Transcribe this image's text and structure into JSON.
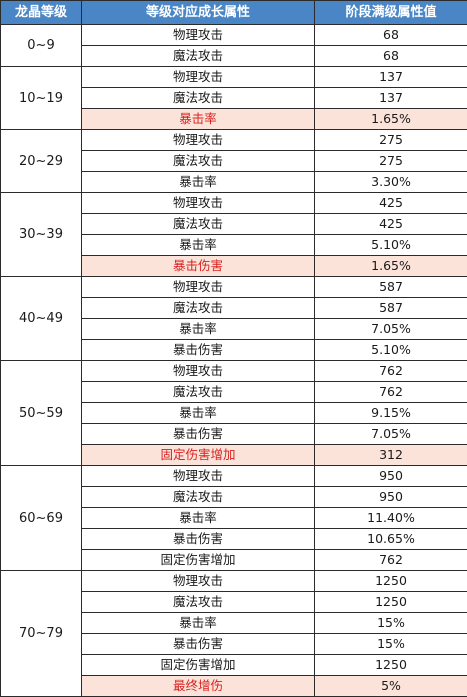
{
  "header": {
    "level": "龙晶等级",
    "attr": "等级对应成长属性",
    "value": "阶段满级属性值"
  },
  "highlight_color": "#fbe3da",
  "groups": [
    {
      "level": "0~9",
      "rows": [
        {
          "attr": "物理攻击",
          "value": "68",
          "new": false
        },
        {
          "attr": "魔法攻击",
          "value": "68",
          "new": false
        }
      ]
    },
    {
      "level": "10~19",
      "rows": [
        {
          "attr": "物理攻击",
          "value": "137",
          "new": false
        },
        {
          "attr": "魔法攻击",
          "value": "137",
          "new": false
        },
        {
          "attr": "暴击率",
          "value": "1.65%",
          "new": true
        }
      ]
    },
    {
      "level": "20~29",
      "rows": [
        {
          "attr": "物理攻击",
          "value": "275",
          "new": false
        },
        {
          "attr": "魔法攻击",
          "value": "275",
          "new": false
        },
        {
          "attr": "暴击率",
          "value": "3.30%",
          "new": false
        }
      ]
    },
    {
      "level": "30~39",
      "rows": [
        {
          "attr": "物理攻击",
          "value": "425",
          "new": false
        },
        {
          "attr": "魔法攻击",
          "value": "425",
          "new": false
        },
        {
          "attr": "暴击率",
          "value": "5.10%",
          "new": false
        },
        {
          "attr": "暴击伤害",
          "value": "1.65%",
          "new": true
        }
      ]
    },
    {
      "level": "40~49",
      "rows": [
        {
          "attr": "物理攻击",
          "value": "587",
          "new": false
        },
        {
          "attr": "魔法攻击",
          "value": "587",
          "new": false
        },
        {
          "attr": "暴击率",
          "value": "7.05%",
          "new": false
        },
        {
          "attr": "暴击伤害",
          "value": "5.10%",
          "new": false
        }
      ]
    },
    {
      "level": "50~59",
      "rows": [
        {
          "attr": "物理攻击",
          "value": "762",
          "new": false
        },
        {
          "attr": "魔法攻击",
          "value": "762",
          "new": false
        },
        {
          "attr": "暴击率",
          "value": "9.15%",
          "new": false
        },
        {
          "attr": "暴击伤害",
          "value": "7.05%",
          "new": false
        },
        {
          "attr": "固定伤害增加",
          "value": "312",
          "new": true
        }
      ]
    },
    {
      "level": "60~69",
      "rows": [
        {
          "attr": "物理攻击",
          "value": "950",
          "new": false
        },
        {
          "attr": "魔法攻击",
          "value": "950",
          "new": false
        },
        {
          "attr": "暴击率",
          "value": "11.40%",
          "new": false
        },
        {
          "attr": "暴击伤害",
          "value": "10.65%",
          "new": false
        },
        {
          "attr": "固定伤害增加",
          "value": "762",
          "new": false
        }
      ]
    },
    {
      "level": "70~79",
      "rows": [
        {
          "attr": "物理攻击",
          "value": "1250",
          "new": false
        },
        {
          "attr": "魔法攻击",
          "value": "1250",
          "new": false
        },
        {
          "attr": "暴击率",
          "value": "15%",
          "new": false
        },
        {
          "attr": "暴击伤害",
          "value": "15%",
          "new": false
        },
        {
          "attr": "固定伤害增加",
          "value": "1250",
          "new": false
        },
        {
          "attr": "最终增伤",
          "value": "5%",
          "new": true
        }
      ]
    }
  ]
}
